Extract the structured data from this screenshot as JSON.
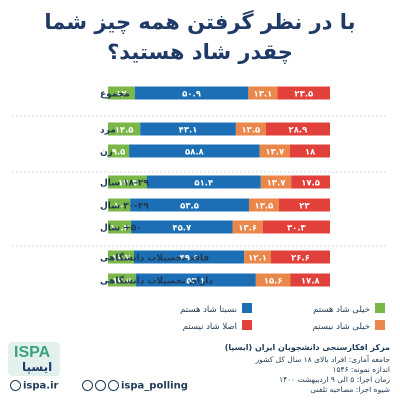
{
  "title": {
    "line1": "با در نظر گرفتن همه چیز شما",
    "line2": "چقدر شاد هستید؟"
  },
  "colors": {
    "very_happy": "#7ab648",
    "somewhat_happy": "#1c6fb4",
    "not_very_happy": "#e9884a",
    "not_happy": "#e2403a"
  },
  "legend": {
    "very_happy": "خیلی شاد هستم",
    "somewhat_happy": "نسبتا شاد هستم",
    "not_very_happy": "خیلی شاد نیستم",
    "not_happy": "اصلا شاد نیستم"
  },
  "chart_data": {
    "type": "bar",
    "stacked": true,
    "orientation": "horizontal",
    "title": "با در نظر گرفتن همه چیز شما چقدر شاد هستید؟",
    "categories": [
      "مجموع",
      "مرد",
      "زن",
      "۱۸-۲۹ سال",
      "۳۰-۴۹ سال",
      "۵۰+ سال",
      "فاقد تحصیلات دانشگاهی",
      "دارای تحصیلات دانشگاهی"
    ],
    "groups": [
      [
        0
      ],
      [
        1,
        2
      ],
      [
        3,
        4,
        5
      ],
      [
        6,
        7
      ]
    ],
    "series": [
      {
        "name": "خیلی شاد هستم",
        "values": [
          12,
          14.5,
          9.5,
          17.5,
          10,
          10.4,
          11.7,
          12.5
        ],
        "labels": [
          "۱۲",
          "۱۴.۵",
          "۹.۵",
          "۱۷.۵",
          "۱۰",
          "۱۰.۴",
          "۱۱.۷",
          "۱۲.۵"
        ]
      },
      {
        "name": "نسبتا شاد هستم",
        "values": [
          50.9,
          43.1,
          58.8,
          51.4,
          53.5,
          45.7,
          49.6,
          54.1
        ],
        "labels": [
          "۵۰.۹",
          "۴۳.۱",
          "۵۸.۸",
          "۵۱.۴",
          "۵۳.۵",
          "۴۵.۷",
          "۴۹.۶",
          "۵۴.۱"
        ]
      },
      {
        "name": "خیلی شاد نیستم",
        "values": [
          13.1,
          13.5,
          13.7,
          13.7,
          13.5,
          13.6,
          12.1,
          15.6
        ],
        "labels": [
          "۱۳.۱",
          "۱۳.۵",
          "۱۳.۷",
          "۱۳.۷",
          "۱۳.۵",
          "۱۳.۶",
          "۱۲.۱",
          "۱۵.۶"
        ]
      },
      {
        "name": "اصلا شاد نیستم",
        "values": [
          23.5,
          28.9,
          18,
          17.5,
          23,
          30.3,
          26.6,
          17.8
        ],
        "labels": [
          "۲۳.۵",
          "۲۸.۹",
          "۱۸",
          "۱۷.۵",
          "۲۳",
          "۳۰.۳",
          "۲۶.۶",
          "۱۷.۸"
        ]
      }
    ]
  },
  "footer": {
    "org": "مرکز افکارسنجی دانشجویان ایران (ایسپا)",
    "population": "جامعه آماری: افراد بالای ۱۸ سال کل کشور",
    "sample": "اندازه نمونه: ۱۵۴۶",
    "date": "زمان اجرا: ۵ الی ۹ اردیبهشت ۱۴۰۰",
    "method": "شیوه اجرا: مصاحبه تلفنی",
    "website": "ispa.ir",
    "handle": "ispa_polling",
    "logo_text": "ISPA",
    "logo_sub": "ایسپا"
  }
}
